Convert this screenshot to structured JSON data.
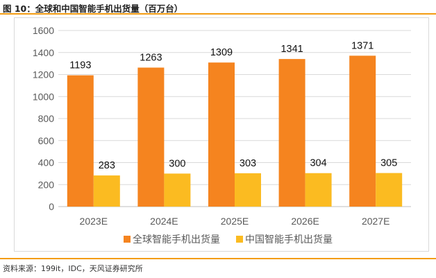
{
  "figure": {
    "title": "图 10：全球和中国智能手机出货量（百万台）",
    "source": "资料来源：199it，IDC，天风证券研究所"
  },
  "colors": {
    "accent_rule": "#f39c12",
    "series_global": "#f5841f",
    "series_china": "#fbbb21"
  },
  "chart_data": {
    "type": "bar",
    "categories": [
      "2023E",
      "2024E",
      "2025E",
      "2026E",
      "2027E"
    ],
    "series": [
      {
        "name": "全球智能手机出货量",
        "values": [
          1193,
          1263,
          1309,
          1341,
          1371
        ],
        "color": "#f5841f"
      },
      {
        "name": "中国智能手机出货量",
        "values": [
          283,
          300,
          303,
          304,
          305
        ],
        "color": "#fbbb21"
      }
    ],
    "ylim": [
      0,
      1600
    ],
    "yticks": [
      0,
      200,
      400,
      600,
      800,
      1000,
      1200,
      1400,
      1600
    ],
    "grid": true,
    "legend": "bottom"
  }
}
